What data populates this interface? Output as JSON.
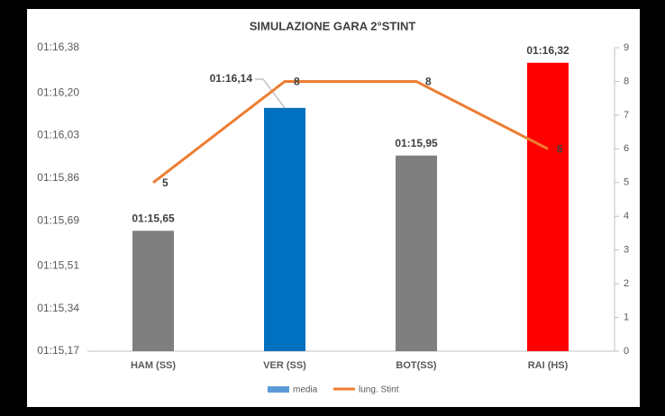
{
  "chart_data": {
    "type": "bar",
    "title": "SIMULAZIONE GARA 2°STINT",
    "categories": [
      "HAM (SS)",
      "VER (SS)",
      "BOT(SS)",
      "RAI (HS)"
    ],
    "series": [
      {
        "name": "media",
        "type": "bar",
        "color": "#5b9bd5",
        "colors": [
          "#7f7f7f",
          "#0070c0",
          "#7f7f7f",
          "#ff0000"
        ],
        "values": [
          75.65,
          76.14,
          75.95,
          76.32
        ],
        "value_labels": [
          "01:15,65",
          "01:16,14",
          "01:15,95",
          "01:16,32"
        ]
      },
      {
        "name": "lung. Stint",
        "type": "line",
        "axis": "y2",
        "color": "#ed7d31",
        "values": [
          5,
          8,
          8,
          6
        ]
      }
    ],
    "ylim": [
      75.17,
      76.38
    ],
    "yticks": [
      {
        "value": 75.17,
        "label": "01:15,17"
      },
      {
        "value": 75.34,
        "label": "01:15,34"
      },
      {
        "value": 75.51,
        "label": "01:15,51"
      },
      {
        "value": 75.69,
        "label": "01:15,69"
      },
      {
        "value": 75.86,
        "label": "01:15,86"
      },
      {
        "value": 76.03,
        "label": "01:16,03"
      },
      {
        "value": 76.2,
        "label": "01:16,20"
      },
      {
        "value": 76.38,
        "label": "01:16,38"
      }
    ],
    "y2lim": [
      0,
      9
    ],
    "y2ticks": [
      0,
      1,
      2,
      3,
      4,
      5,
      6,
      7,
      8,
      9
    ],
    "grid": false,
    "legend": "bottom"
  }
}
